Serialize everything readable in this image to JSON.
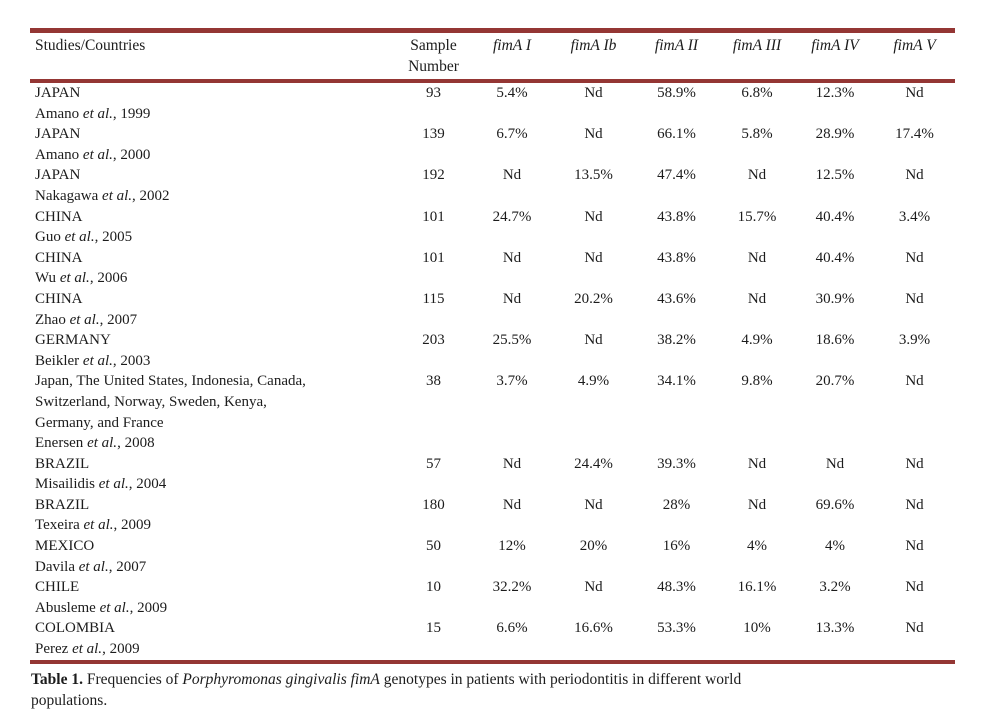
{
  "page": {
    "rule_color": "#943634",
    "text_color": "#1c1c1c"
  },
  "table": {
    "header": {
      "studies": "Studies/Countries",
      "sample": "Sample Number",
      "genotypes": [
        "fimA I",
        "fimA Ib",
        "fimA II",
        "fimA III",
        "fimA IV",
        "fimA V"
      ]
    },
    "rows": [
      {
        "study_lines": [
          "JAPAN"
        ],
        "citation": {
          "prefix": "Amano ",
          "etal": "et al.",
          "suffix": ", 1999"
        },
        "values": [
          "93",
          "5.4%",
          "Nd",
          "58.9%",
          "6.8%",
          "12.3%",
          "Nd"
        ]
      },
      {
        "study_lines": [
          "JAPAN"
        ],
        "citation": {
          "prefix": "Amano ",
          "etal": "et al.",
          "suffix": ", 2000"
        },
        "values": [
          "139",
          "6.7%",
          "Nd",
          "66.1%",
          "5.8%",
          "28.9%",
          "17.4%"
        ]
      },
      {
        "study_lines": [
          "JAPAN"
        ],
        "citation": {
          "prefix": "Nakagawa ",
          "etal": "et al.",
          "suffix": ", 2002"
        },
        "values": [
          "192",
          "Nd",
          "13.5%",
          "47.4%",
          "Nd",
          "12.5%",
          "Nd"
        ]
      },
      {
        "study_lines": [
          "CHINA"
        ],
        "citation": {
          "prefix": "Guo ",
          "etal": "et al.",
          "suffix": ", 2005"
        },
        "values": [
          "101",
          "24.7%",
          "Nd",
          "43.8%",
          "15.7%",
          "40.4%",
          "3.4%"
        ]
      },
      {
        "study_lines": [
          "CHINA"
        ],
        "citation": {
          "prefix": "Wu ",
          "etal": "et al.",
          "suffix": ", 2006"
        },
        "values": [
          "101",
          "Nd",
          "Nd",
          "43.8%",
          "Nd",
          "40.4%",
          "Nd"
        ]
      },
      {
        "study_lines": [
          "CHINA"
        ],
        "citation": {
          "prefix": "Zhao ",
          "etal": "et al.",
          "suffix": ", 2007"
        },
        "values": [
          "115",
          "Nd",
          "20.2%",
          "43.6%",
          "Nd",
          "30.9%",
          "Nd"
        ]
      },
      {
        "study_lines": [
          "GERMANY"
        ],
        "citation": {
          "prefix": "Beikler ",
          "etal": "et al.",
          "suffix": ", 2003"
        },
        "values": [
          "203",
          "25.5%",
          "Nd",
          "38.2%",
          "4.9%",
          "18.6%",
          "3.9%"
        ]
      },
      {
        "study_lines": [
          "Japan, The United States, Indonesia, Canada,",
          "Switzerland, Norway, Sweden, Kenya,",
          "Germany, and France"
        ],
        "citation": {
          "prefix": "Enersen ",
          "etal": "et al.",
          "suffix": ", 2008"
        },
        "values": [
          "38",
          "3.7%",
          "4.9%",
          "34.1%",
          "9.8%",
          "20.7%",
          "Nd"
        ]
      },
      {
        "study_lines": [
          "BRAZIL"
        ],
        "citation": {
          "prefix": "Misailidis ",
          "etal": "et al.",
          "suffix": ", 2004"
        },
        "values": [
          "57",
          "Nd",
          "24.4%",
          "39.3%",
          "Nd",
          "Nd",
          "Nd"
        ]
      },
      {
        "study_lines": [
          "BRAZIL"
        ],
        "citation": {
          "prefix": "Texeira ",
          "etal": "et al.",
          "suffix": ", 2009"
        },
        "values": [
          "180",
          "Nd",
          "Nd",
          "28%",
          "Nd",
          "69.6%",
          "Nd"
        ]
      },
      {
        "study_lines": [
          "MEXICO"
        ],
        "citation": {
          "prefix": "Davila ",
          "etal": "et al.",
          "suffix": ", 2007"
        },
        "values": [
          "50",
          "12%",
          "20%",
          "16%",
          "4%",
          "4%",
          "Nd"
        ]
      },
      {
        "study_lines": [
          "CHILE"
        ],
        "citation": {
          "prefix": "Abusleme ",
          "etal": "et al.",
          "suffix": ", 2009"
        },
        "values": [
          "10",
          "32.2%",
          "Nd",
          "48.3%",
          "16.1%",
          "3.2%",
          "Nd"
        ]
      },
      {
        "study_lines": [
          "COLOMBIA"
        ],
        "citation": {
          "prefix": "Perez ",
          "etal": "et al.",
          "suffix": ", 2009"
        },
        "values": [
          "15",
          "6.6%",
          "16.6%",
          "53.3%",
          "10%",
          "13.3%",
          "Nd"
        ]
      }
    ],
    "caption": {
      "label": "Table 1.",
      "before": " Frequencies of ",
      "italic": "Porphyromonas gingivalis fimA",
      "after_line1": " genotypes in patients with periodontitis in different world",
      "line2": "populations."
    }
  }
}
